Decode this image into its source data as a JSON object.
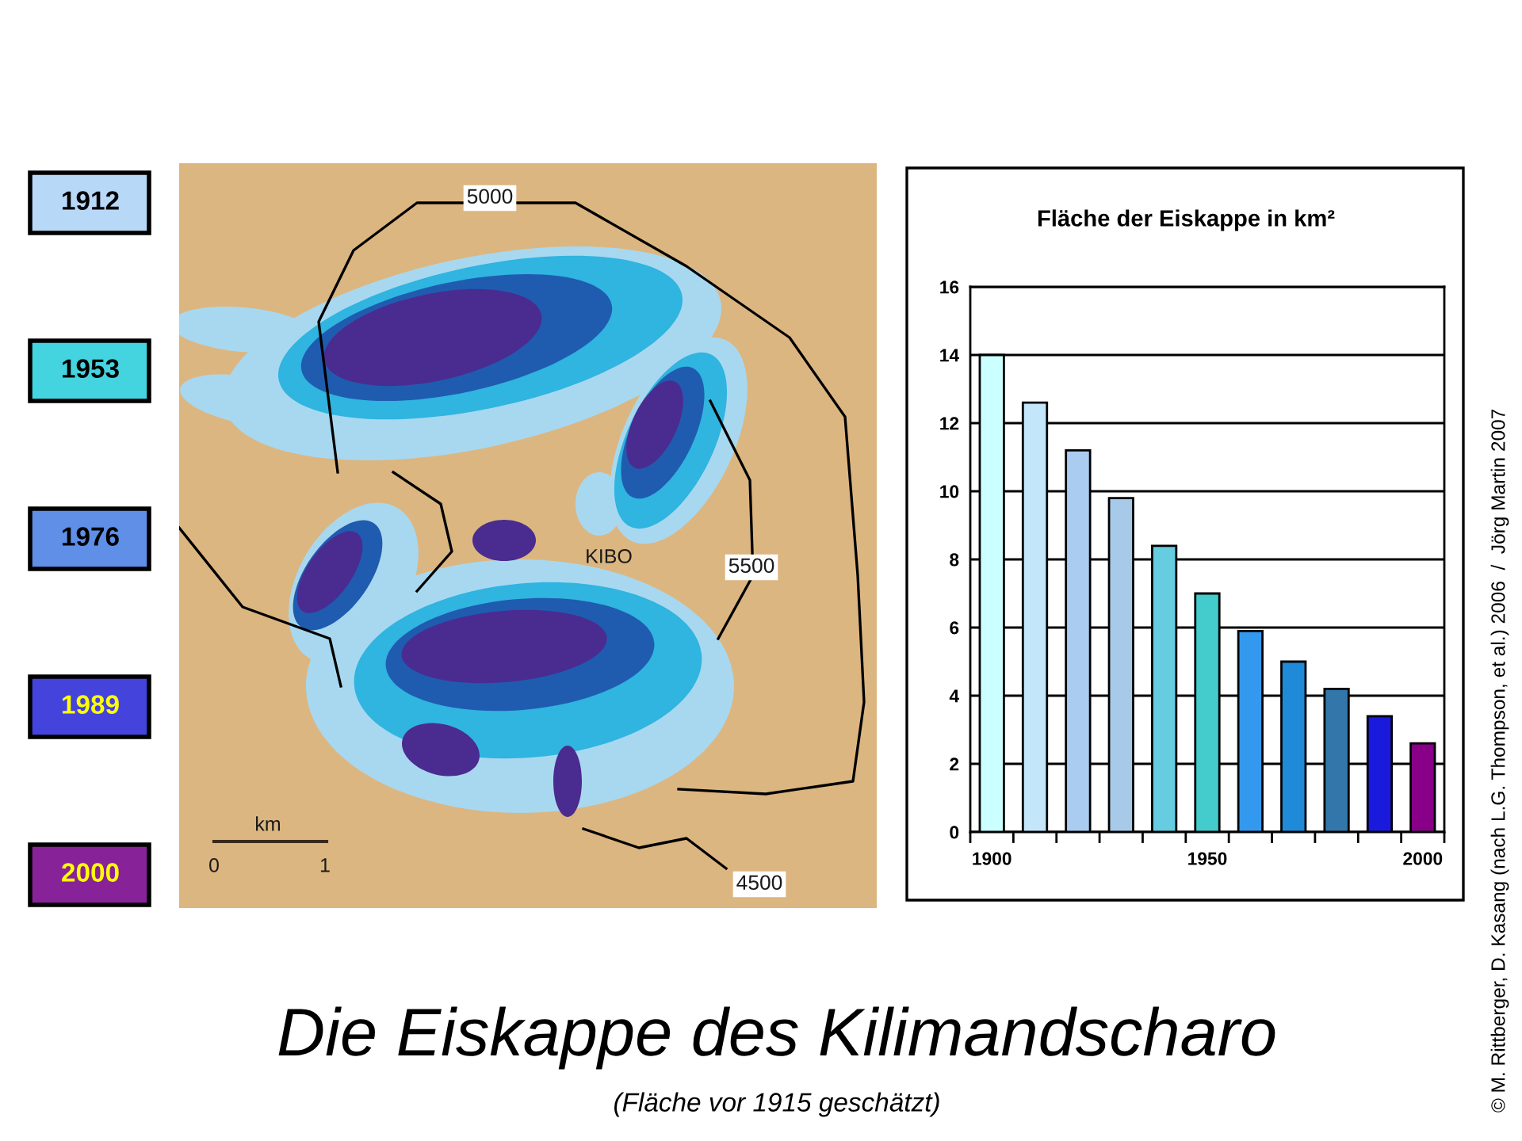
{
  "chart_data": {
    "type": "bar",
    "title": "Fläche der Eiskappe in km²",
    "categories": [
      "1900",
      null,
      null,
      null,
      null,
      "1950",
      null,
      null,
      null,
      null,
      "2000"
    ],
    "values": [
      14,
      12.6,
      11.2,
      9.8,
      8.4,
      7.0,
      5.9,
      5.0,
      4.2,
      3.4,
      2.6
    ],
    "colors": [
      "#ccffff",
      "#c4e6fa",
      "#aaccf0",
      "#a6cae8",
      "#66cce0",
      "#44cccc",
      "#3399ee",
      "#1f8ad8",
      "#3377aa",
      "#1a1add",
      "#880088"
    ],
    "ylim": [
      0,
      16
    ],
    "yticks": [
      0,
      2,
      4,
      6,
      8,
      10,
      12,
      14,
      16
    ],
    "grid": "y",
    "annotations": [
      "Die Eiskappe des Kilimandscharo",
      "(Fläche vor 1915 geschätzt)",
      "© M. Rittberger, D. Kasang (nach L.G. Thompson, et al.) 2006  /  Jörg Martin 2007",
      "1912",
      "1953",
      "1976",
      "1989",
      "2000",
      "5000",
      "KIBO",
      "5500",
      "4500",
      "km",
      "0",
      "1"
    ]
  }
}
